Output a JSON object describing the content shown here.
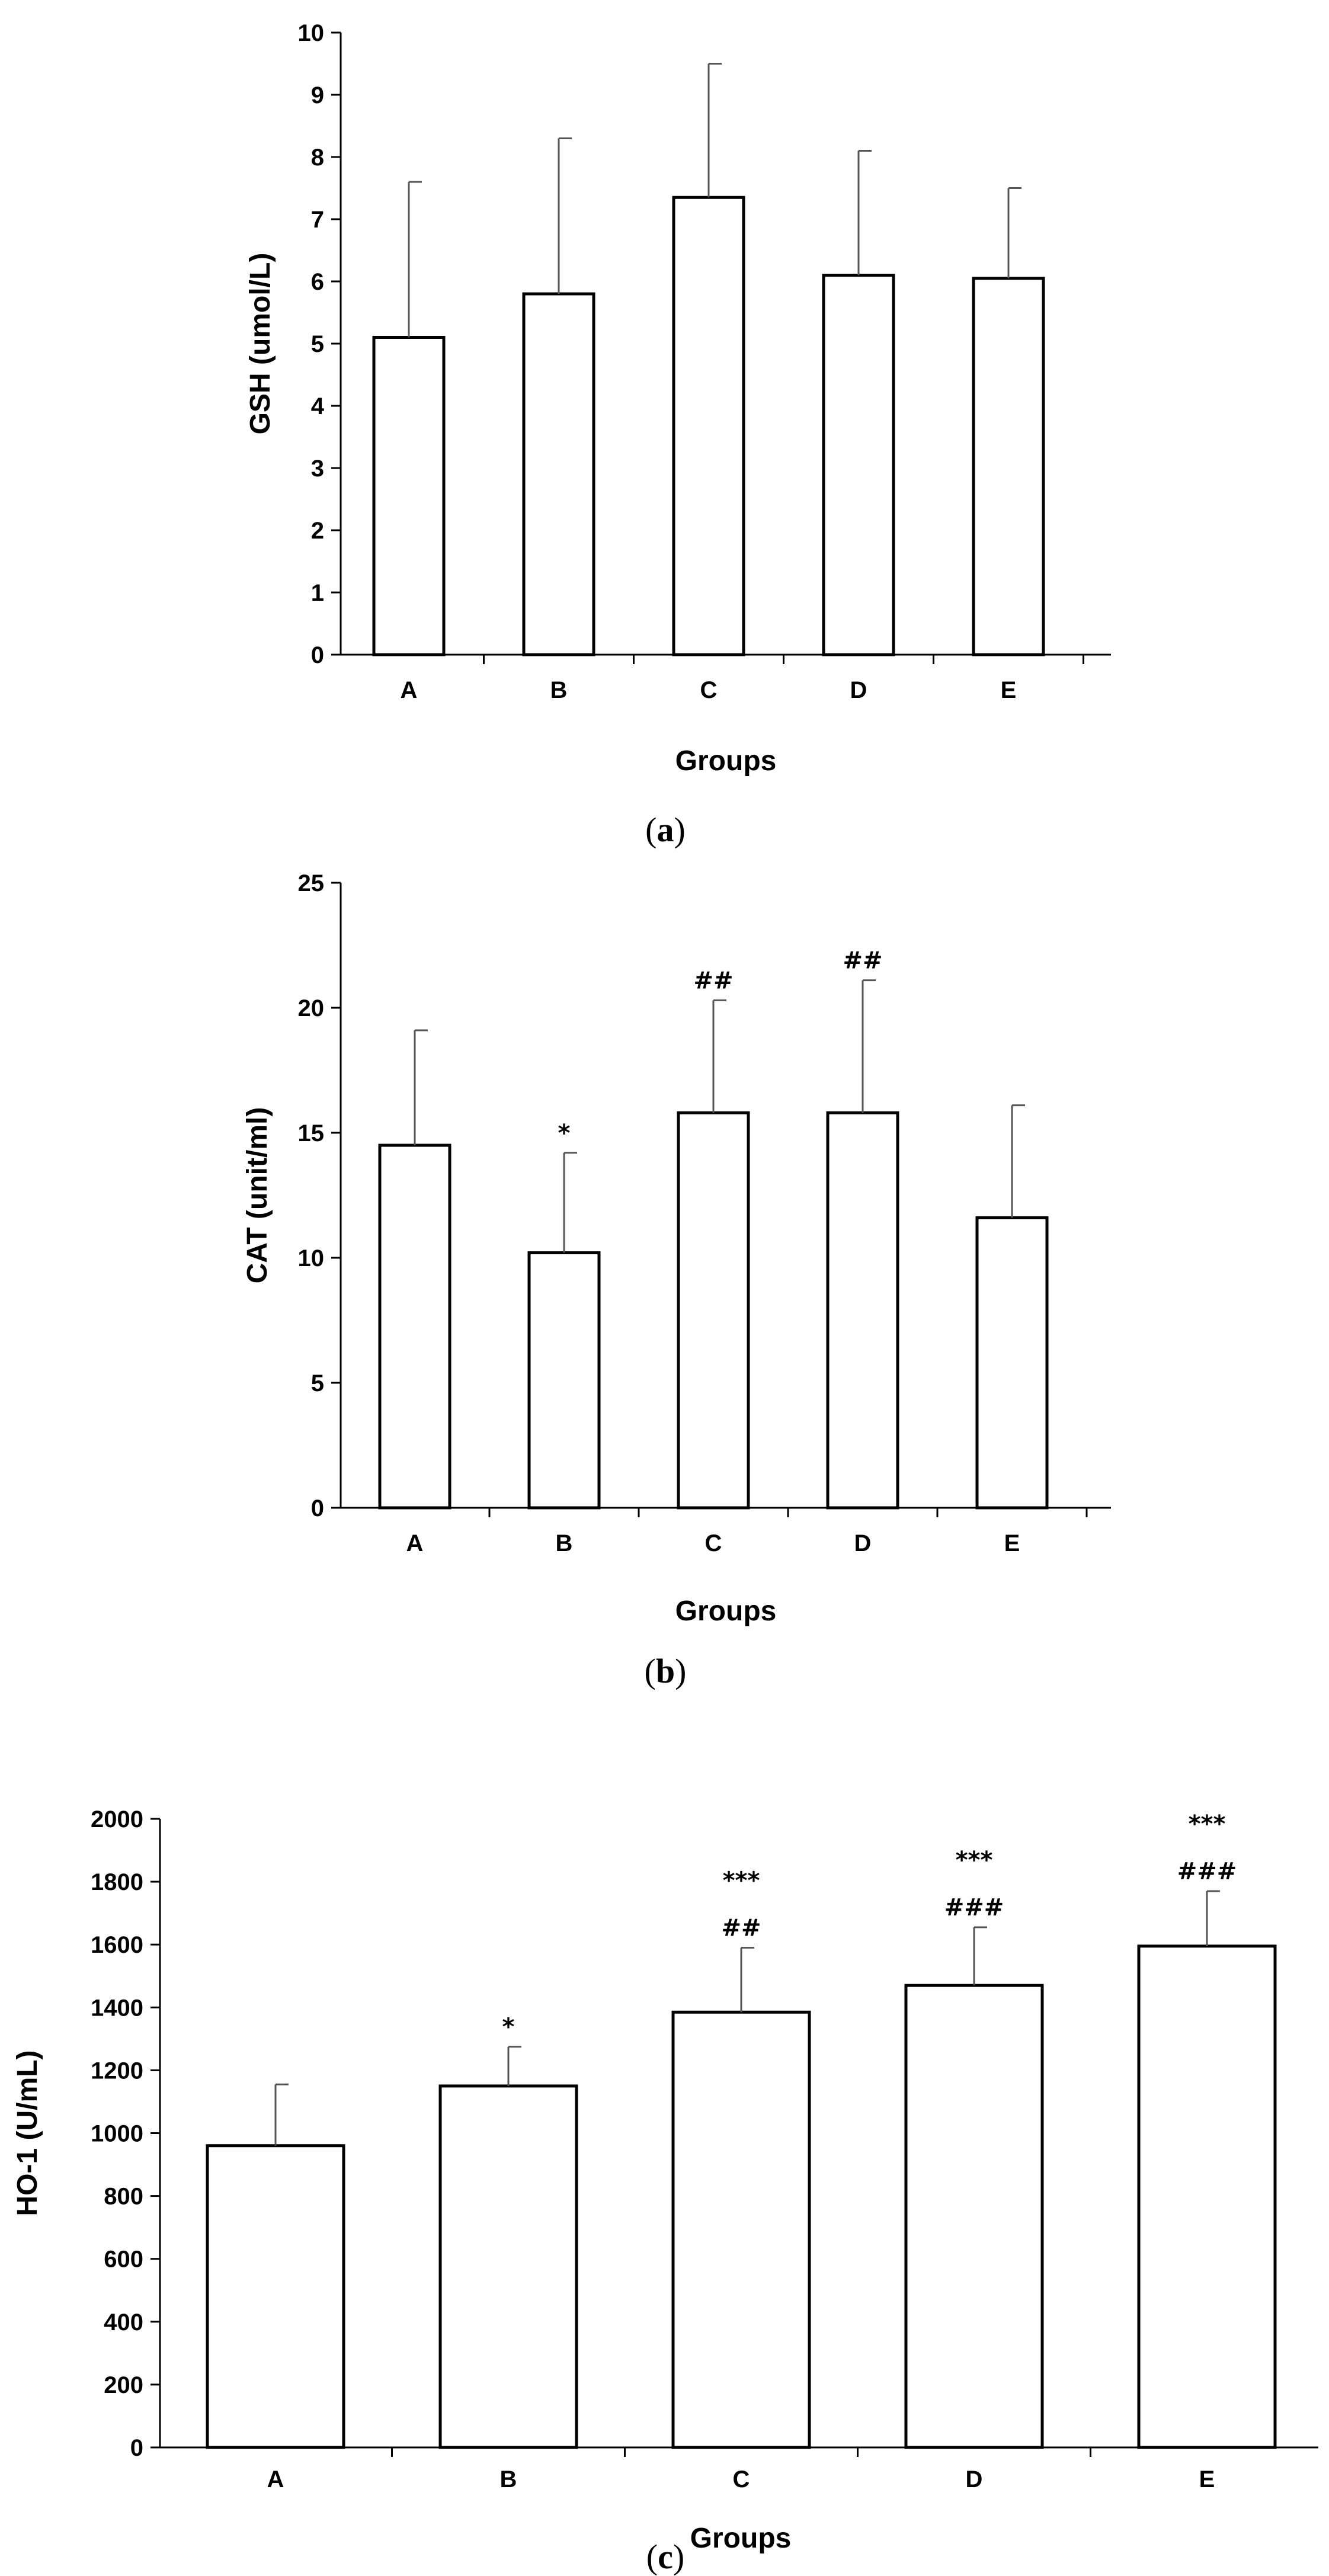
{
  "chart_data": [
    {
      "type": "bar",
      "panel_label": "a",
      "title": "",
      "xlabel": "Groups",
      "ylabel": "GSH (umol/L)",
      "categories": [
        "A",
        "B",
        "C",
        "D",
        "E"
      ],
      "values": [
        5.1,
        5.8,
        7.35,
        6.1,
        6.05
      ],
      "errors": [
        2.5,
        2.5,
        2.15,
        2.0,
        1.45
      ],
      "annotations": [
        [],
        [],
        [],
        [],
        []
      ],
      "ylim": [
        0,
        10
      ],
      "yticks": [
        0,
        1,
        2,
        3,
        4,
        5,
        6,
        7,
        8,
        9,
        10
      ],
      "grid": false
    },
    {
      "type": "bar",
      "panel_label": "b",
      "title": "",
      "xlabel": "Groups",
      "ylabel": "CAT (unit/ml)",
      "categories": [
        "A",
        "B",
        "C",
        "D",
        "E"
      ],
      "values": [
        14.5,
        10.2,
        15.8,
        15.8,
        11.6
      ],
      "errors": [
        4.6,
        4.0,
        4.5,
        5.3,
        4.5
      ],
      "annotations": [
        [],
        [
          "*"
        ],
        [
          "##"
        ],
        [
          "##"
        ],
        []
      ],
      "ylim": [
        0,
        25
      ],
      "yticks": [
        0,
        5,
        10,
        15,
        20,
        25
      ],
      "grid": false
    },
    {
      "type": "bar",
      "panel_label": "c",
      "title": "",
      "xlabel": "Groups",
      "ylabel": "HO-1 (U/mL)",
      "categories": [
        "A",
        "B",
        "C",
        "D",
        "E"
      ],
      "values": [
        960,
        1150,
        1385,
        1470,
        1595
      ],
      "errors": [
        195,
        125,
        205,
        185,
        175
      ],
      "annotations": [
        [],
        [
          "*"
        ],
        [
          "***",
          "##"
        ],
        [
          "***",
          "###"
        ],
        [
          "***",
          "###"
        ]
      ],
      "ylim": [
        0,
        2000
      ],
      "yticks": [
        0,
        200,
        400,
        600,
        800,
        1000,
        1200,
        1400,
        1600,
        1800,
        2000
      ],
      "grid": false
    }
  ]
}
